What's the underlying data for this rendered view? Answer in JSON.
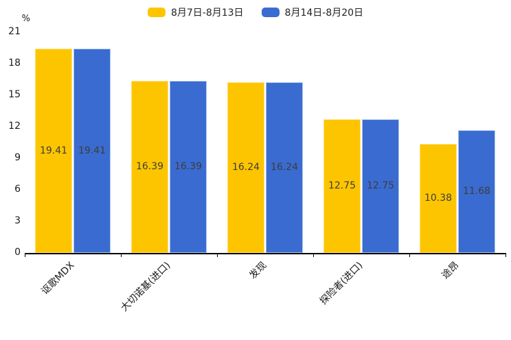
{
  "chart_data": {
    "type": "bar",
    "title": "",
    "unit": "%",
    "categories": [
      "讴歌MDX",
      "大切诺基(进口)",
      "发现",
      "探险者(进口)",
      "途昂"
    ],
    "series": [
      {
        "name": "8月7日-8月13日",
        "color": "#FDC500",
        "border_color": "#FFDE7A",
        "values": [
          19.41,
          16.39,
          16.24,
          12.75,
          10.38
        ]
      },
      {
        "name": "8月14日-8月20日",
        "color": "#3A6BD0",
        "border_color": "#A9C3F0",
        "values": [
          19.41,
          16.39,
          16.24,
          12.75,
          11.68
        ]
      }
    ],
    "yticks": [
      0,
      3,
      6,
      9,
      12,
      15,
      18,
      21
    ],
    "ylim": [
      0,
      21
    ],
    "grid": false,
    "legend_position": "top",
    "value_label_color": "#3d3d3d",
    "axis_color": "#000000"
  }
}
